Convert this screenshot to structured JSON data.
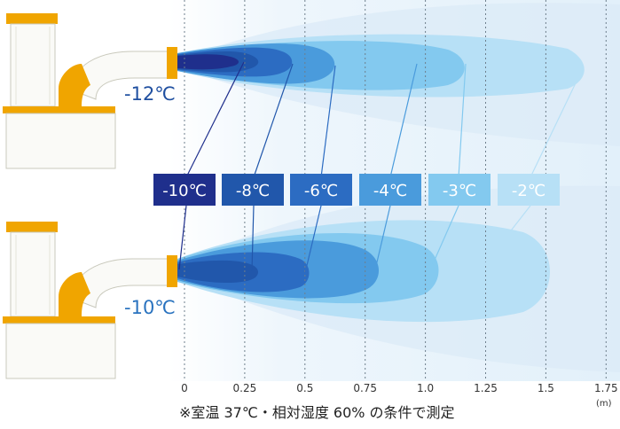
{
  "top_unit": {
    "outlet_temp": "-12℃",
    "outlet_color": "#1f4fa0"
  },
  "bottom_unit": {
    "outlet_temp": "-10℃",
    "outlet_color": "#2a73bf"
  },
  "legend": [
    {
      "label": "-10℃",
      "color": "#1f2f8c"
    },
    {
      "label": "-8℃",
      "color": "#2157ab"
    },
    {
      "label": "-6℃",
      "color": "#2c6cc2"
    },
    {
      "label": "-4℃",
      "color": "#4a9bdc"
    },
    {
      "label": "-3℃",
      "color": "#83c9ef"
    },
    {
      "label": "-2℃",
      "color": "#b7e0f6"
    }
  ],
  "axis": {
    "ticks": [
      "0",
      "0.25",
      "0.5",
      "0.75",
      "1.0",
      "1.25",
      "1.5",
      "1.75"
    ],
    "unit": "(m)"
  },
  "top_zones_reach_m": [
    0.3,
    0.45,
    0.62,
    1.16,
    1.65
  ],
  "bottom_zones_reach_m": [
    0.3,
    0.52,
    0.81,
    1.03
  ],
  "note": "※室温 37℃・相対湿度 60% の条件で測定",
  "colors": {
    "unit_orange": "#f0a500",
    "unit_body": "#fafaf7",
    "unit_edge": "#b8b8a8",
    "background": "#eaf4fb"
  }
}
